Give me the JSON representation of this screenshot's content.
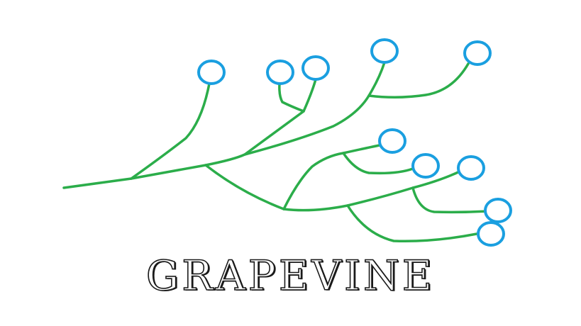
{
  "brand": {
    "name": "GRAPEVINE",
    "vine_color": "#2bad4a",
    "node_color": "#1a9fe0",
    "text_color": "#1a1a1a"
  },
  "icons": [
    "vine-icon",
    "vine-node-icon"
  ]
}
